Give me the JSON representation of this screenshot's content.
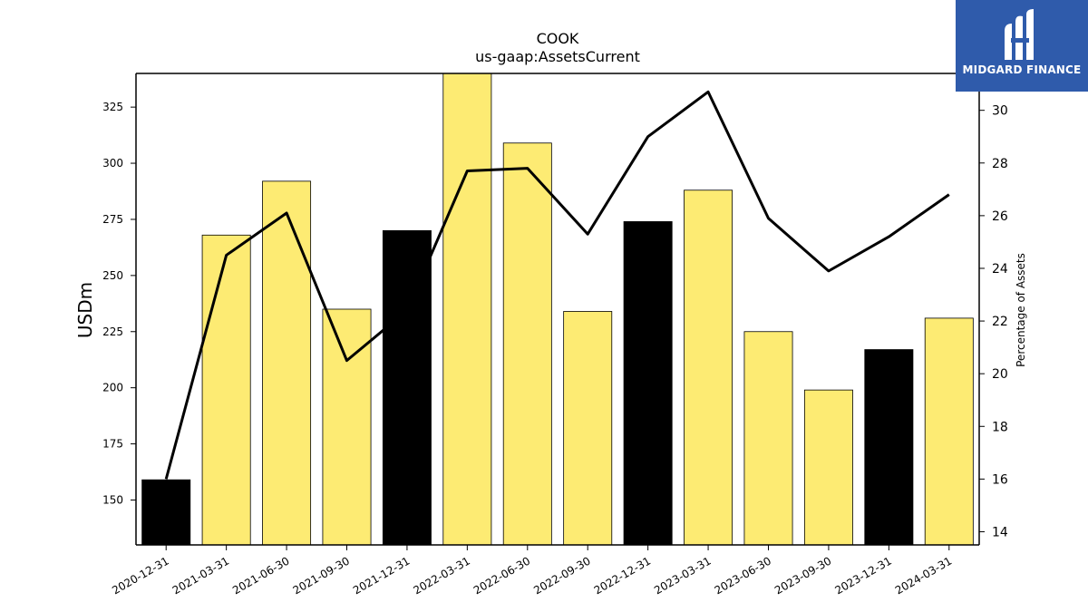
{
  "title": "COOK",
  "subtitle": "us-gaap:AssetsCurrent",
  "logo": {
    "text": "MIDGARD FINANCE",
    "background": "#2f5bab"
  },
  "chart_data": {
    "type": "bar",
    "categories": [
      "2020-12-31",
      "2021-03-31",
      "2021-06-30",
      "2021-09-30",
      "2021-12-31",
      "2022-03-31",
      "2022-06-30",
      "2022-09-30",
      "2022-12-31",
      "2023-03-31",
      "2023-06-30",
      "2023-09-30",
      "2023-12-31",
      "2024-03-31"
    ],
    "ylabel": "USDm",
    "ylim": [
      130,
      340
    ],
    "yticks": [
      150,
      175,
      200,
      225,
      250,
      275,
      300,
      325
    ],
    "y2label": "Percentage of Assets",
    "y2lim": [
      13.5,
      31.4
    ],
    "y2ticks": [
      14,
      16,
      18,
      20,
      22,
      24,
      26,
      28,
      30
    ],
    "series": [
      {
        "kind": "bar",
        "axis": "left",
        "values": [
          159,
          268,
          292,
          235,
          270,
          340,
          309,
          234,
          274,
          288,
          225,
          199,
          217,
          231
        ],
        "colors": [
          "#000000",
          "#fdeb73",
          "#fdeb73",
          "#fdeb73",
          "#000000",
          "#fdeb73",
          "#fdeb73",
          "#fdeb73",
          "#000000",
          "#fdeb73",
          "#fdeb73",
          "#fdeb73",
          "#000000",
          "#fdeb73"
        ]
      },
      {
        "kind": "line",
        "axis": "right",
        "color": "#000000",
        "values": [
          16.0,
          24.5,
          26.1,
          20.5,
          22.4,
          27.7,
          27.8,
          25.3,
          29.0,
          30.7,
          25.9,
          23.9,
          25.2,
          26.8
        ]
      }
    ],
    "grid": false
  }
}
